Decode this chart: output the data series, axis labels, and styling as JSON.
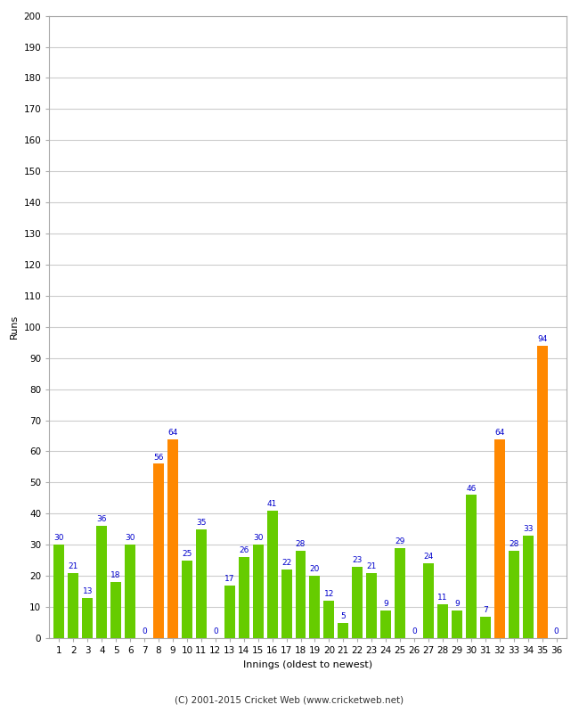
{
  "xlabel": "Innings (oldest to newest)",
  "ylabel": "Runs",
  "values": [
    30,
    21,
    13,
    36,
    18,
    30,
    0,
    56,
    64,
    25,
    35,
    0,
    17,
    26,
    30,
    41,
    22,
    28,
    20,
    12,
    5,
    23,
    21,
    9,
    29,
    0,
    24,
    11,
    9,
    46,
    7,
    64,
    28,
    33,
    94,
    0
  ],
  "labels": [
    "1",
    "2",
    "3",
    "4",
    "5",
    "6",
    "7",
    "8",
    "9",
    "10",
    "11",
    "12",
    "13",
    "14",
    "15",
    "16",
    "17",
    "18",
    "19",
    "20",
    "21",
    "22",
    "23",
    "24",
    "25",
    "26",
    "27",
    "28",
    "29",
    "30",
    "31",
    "32",
    "33",
    "34",
    "35",
    "36"
  ],
  "orange_indices": [
    7,
    8,
    31,
    34
  ],
  "bar_color_green": "#66cc00",
  "bar_color_orange": "#ff8800",
  "label_color": "#0000cc",
  "ylim": [
    0,
    200
  ],
  "yticks": [
    0,
    10,
    20,
    30,
    40,
    50,
    60,
    70,
    80,
    90,
    100,
    110,
    120,
    130,
    140,
    150,
    160,
    170,
    180,
    190,
    200
  ],
  "background_color": "#ffffff",
  "grid_color": "#cccccc",
  "footer": "(C) 2001-2015 Cricket Web (www.cricketweb.net)",
  "label_fontsize": 6.5,
  "axis_label_fontsize": 8,
  "tick_fontsize": 7.5,
  "footer_fontsize": 7.5
}
